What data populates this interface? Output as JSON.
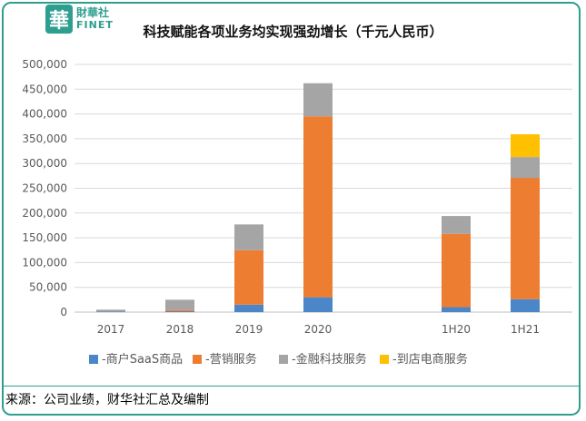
{
  "logo": {
    "glyph": "華",
    "cn": "財華社",
    "en": "FINET"
  },
  "source_note": "来源：公司业绩，财华社汇总及编制",
  "colors": {
    "frame": "#2e9e8f",
    "saas": "#4a86c8",
    "marketing": "#ed7d31",
    "fintech": "#a5a5a5",
    "instore": "#ffc000",
    "grid": "#d9d9d9",
    "axis_text": "#595959"
  },
  "chart_data": {
    "type": "bar",
    "stacked": true,
    "title": "科技赋能各项业务均实现强劲增长（千元人民币）",
    "xlabel": "",
    "ylabel": "",
    "categories": [
      "2017",
      "2018",
      "2019",
      "2020",
      "1H20",
      "1H21"
    ],
    "gap_after_index": 3,
    "ylim": [
      0,
      500000
    ],
    "yticks": [
      "0",
      "50,000",
      "100,000",
      "150,000",
      "200,000",
      "250,000",
      "300,000",
      "350,000",
      "400,000",
      "450,000",
      "500,000"
    ],
    "grid": true,
    "legend_position": "bottom",
    "series": [
      {
        "name": "-商户SaaS商品",
        "color_key": "saas",
        "values": [
          1000,
          2000,
          15000,
          30000,
          10000,
          26000
        ]
      },
      {
        "name": "-营销服务",
        "color_key": "marketing",
        "values": [
          0,
          3000,
          110000,
          365000,
          148000,
          245000
        ]
      },
      {
        "name": "-金融科技服务",
        "color_key": "fintech",
        "values": [
          4000,
          20000,
          52000,
          67000,
          36000,
          42000
        ]
      },
      {
        "name": "-到店电商服务",
        "color_key": "instore",
        "values": [
          0,
          0,
          0,
          0,
          0,
          46000
        ]
      }
    ]
  }
}
